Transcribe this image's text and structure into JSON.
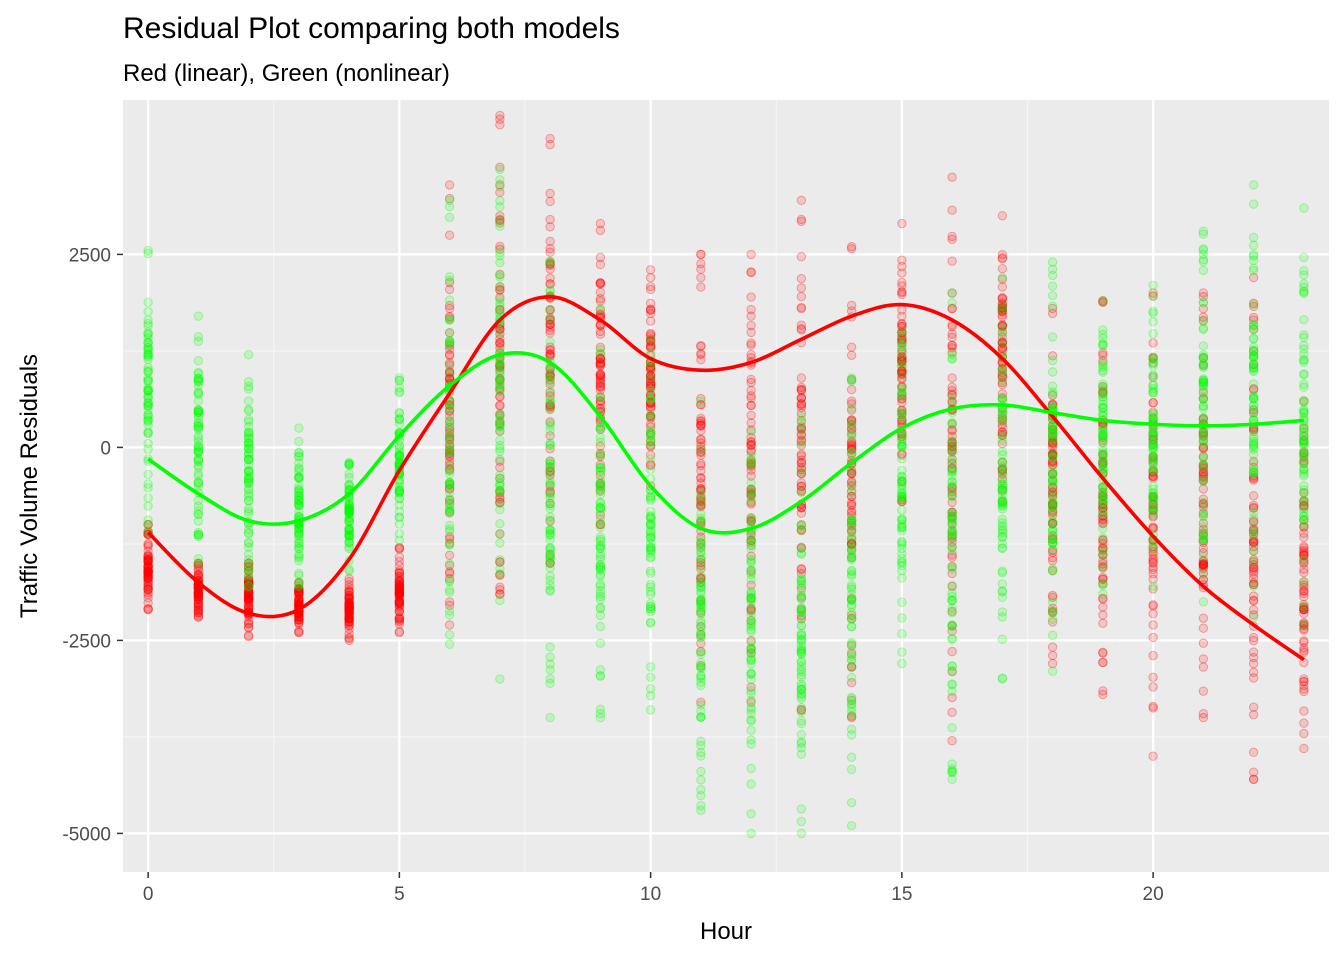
{
  "chart_data": {
    "type": "scatter",
    "title": "Residual Plot comparing both models",
    "subtitle": "Red (linear), Green (nonlinear)",
    "xlabel": "Hour",
    "ylabel": "Traffic Volume Residuals",
    "xlim": [
      -0.5,
      23.5
    ],
    "ylim": [
      -5500,
      4500
    ],
    "x_ticks": [
      {
        "value": 0,
        "label": "0"
      },
      {
        "value": 5,
        "label": "5"
      },
      {
        "value": 10,
        "label": "10"
      },
      {
        "value": 15,
        "label": "15"
      },
      {
        "value": 20,
        "label": "20"
      }
    ],
    "y_ticks": [
      {
        "value": 2500,
        "label": "2500"
      },
      {
        "value": 0,
        "label": "0"
      },
      {
        "value": -2500,
        "label": "-2500"
      },
      {
        "value": -5000,
        "label": "-5000"
      }
    ],
    "grid": true,
    "legend": "none",
    "background": "#ebebeb",
    "series": [
      {
        "model": "linear",
        "color": "#ff0000",
        "range_by_hour": [
          {
            "x": 0,
            "min": -2100,
            "max": -1000
          },
          {
            "x": 1,
            "min": -2200,
            "max": -1500
          },
          {
            "x": 2,
            "min": -2450,
            "max": -1500
          },
          {
            "x": 3,
            "min": -2400,
            "max": -1750
          },
          {
            "x": 4,
            "min": -2500,
            "max": -1700
          },
          {
            "x": 5,
            "min": -2400,
            "max": -1300
          },
          {
            "x": 6,
            "min": -2300,
            "max": 3400
          },
          {
            "x": 7,
            "min": -1900,
            "max": 4300
          },
          {
            "x": 8,
            "min": -1500,
            "max": 4000
          },
          {
            "x": 9,
            "min": -1000,
            "max": 2900
          },
          {
            "x": 10,
            "min": -500,
            "max": 2300
          },
          {
            "x": 11,
            "min": -3300,
            "max": 2500
          },
          {
            "x": 12,
            "min": -3300,
            "max": 2500
          },
          {
            "x": 13,
            "min": -3400,
            "max": 3200
          },
          {
            "x": 14,
            "min": -3500,
            "max": 2600
          },
          {
            "x": 15,
            "min": -700,
            "max": 2900
          },
          {
            "x": 16,
            "min": -3800,
            "max": 3500
          },
          {
            "x": 17,
            "min": -700,
            "max": 3000
          },
          {
            "x": 18,
            "min": -2800,
            "max": 1800
          },
          {
            "x": 19,
            "min": -3200,
            "max": 1900
          },
          {
            "x": 20,
            "min": -4000,
            "max": 2000
          },
          {
            "x": 21,
            "min": -3500,
            "max": 2000
          },
          {
            "x": 22,
            "min": -4300,
            "max": 2200
          },
          {
            "x": 23,
            "min": -3900,
            "max": 600
          }
        ],
        "smooth": [
          {
            "x": 0,
            "y": -1100
          },
          {
            "x": 1,
            "y": -1750
          },
          {
            "x": 2,
            "y": -2150
          },
          {
            "x": 3,
            "y": -2100
          },
          {
            "x": 4,
            "y": -1450
          },
          {
            "x": 5,
            "y": -300
          },
          {
            "x": 6,
            "y": 700
          },
          {
            "x": 7,
            "y": 1650
          },
          {
            "x": 8,
            "y": 1950
          },
          {
            "x": 9,
            "y": 1650
          },
          {
            "x": 10,
            "y": 1150
          },
          {
            "x": 11,
            "y": 1000
          },
          {
            "x": 12,
            "y": 1100
          },
          {
            "x": 13,
            "y": 1400
          },
          {
            "x": 14,
            "y": 1700
          },
          {
            "x": 15,
            "y": 1850
          },
          {
            "x": 16,
            "y": 1650
          },
          {
            "x": 17,
            "y": 1150
          },
          {
            "x": 18,
            "y": 400
          },
          {
            "x": 19,
            "y": -400
          },
          {
            "x": 20,
            "y": -1150
          },
          {
            "x": 21,
            "y": -1800
          },
          {
            "x": 22,
            "y": -2300
          },
          {
            "x": 23,
            "y": -2750
          }
        ]
      },
      {
        "model": "nonlinear",
        "color": "#00ff00",
        "range_by_hour": [
          {
            "x": 0,
            "min": -1100,
            "max": 2550
          },
          {
            "x": 1,
            "min": -1500,
            "max": 1700
          },
          {
            "x": 2,
            "min": -1800,
            "max": 1200
          },
          {
            "x": 3,
            "min": -1800,
            "max": 250
          },
          {
            "x": 4,
            "min": -1600,
            "max": -200
          },
          {
            "x": 5,
            "min": -1200,
            "max": 900
          },
          {
            "x": 6,
            "min": -2550,
            "max": 3200
          },
          {
            "x": 7,
            "min": -3000,
            "max": 3600
          },
          {
            "x": 8,
            "min": -3500,
            "max": 2400
          },
          {
            "x": 9,
            "min": -3500,
            "max": 1800
          },
          {
            "x": 10,
            "min": -3400,
            "max": 1400
          },
          {
            "x": 11,
            "min": -4700,
            "max": 600
          },
          {
            "x": 12,
            "min": -5000,
            "max": 200
          },
          {
            "x": 13,
            "min": -5000,
            "max": 400
          },
          {
            "x": 14,
            "min": -4900,
            "max": 900
          },
          {
            "x": 15,
            "min": -2800,
            "max": 1500
          },
          {
            "x": 16,
            "min": -4300,
            "max": 2000
          },
          {
            "x": 17,
            "min": -3000,
            "max": 2200
          },
          {
            "x": 18,
            "min": -2900,
            "max": 2400
          },
          {
            "x": 19,
            "min": -1900,
            "max": 1900
          },
          {
            "x": 20,
            "min": -1800,
            "max": 2100
          },
          {
            "x": 21,
            "min": -2000,
            "max": 2800
          },
          {
            "x": 22,
            "min": -2200,
            "max": 3400
          },
          {
            "x": 23,
            "min": -2300,
            "max": 3100
          }
        ],
        "smooth": [
          {
            "x": 0,
            "y": -150
          },
          {
            "x": 1,
            "y": -600
          },
          {
            "x": 2,
            "y": -950
          },
          {
            "x": 3,
            "y": -950
          },
          {
            "x": 4,
            "y": -600
          },
          {
            "x": 5,
            "y": 150
          },
          {
            "x": 6,
            "y": 800
          },
          {
            "x": 7,
            "y": 1200
          },
          {
            "x": 8,
            "y": 1100
          },
          {
            "x": 9,
            "y": 400
          },
          {
            "x": 10,
            "y": -500
          },
          {
            "x": 11,
            "y": -1050
          },
          {
            "x": 12,
            "y": -1050
          },
          {
            "x": 13,
            "y": -700
          },
          {
            "x": 14,
            "y": -200
          },
          {
            "x": 15,
            "y": 250
          },
          {
            "x": 16,
            "y": 500
          },
          {
            "x": 17,
            "y": 550
          },
          {
            "x": 18,
            "y": 450
          },
          {
            "x": 19,
            "y": 350
          },
          {
            "x": 20,
            "y": 300
          },
          {
            "x": 21,
            "y": 280
          },
          {
            "x": 22,
            "y": 300
          },
          {
            "x": 23,
            "y": 350
          }
        ]
      }
    ]
  }
}
